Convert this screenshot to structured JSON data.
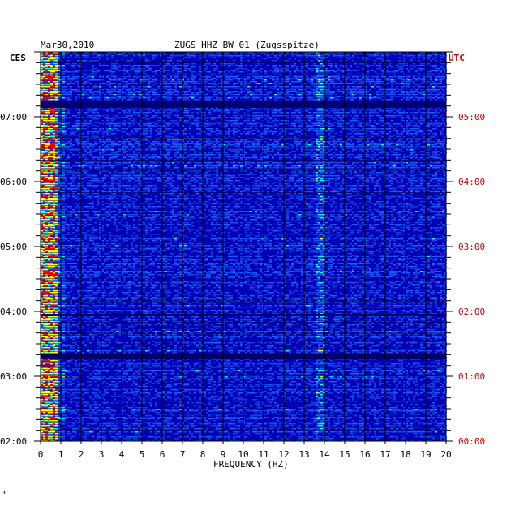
{
  "chart_data": {
    "type": "heatmap",
    "date": "Mar30,2010",
    "title": "ZUGS HHZ BW 01 (Zugsspitze)",
    "left_zone": "CES",
    "right_zone": "UTC",
    "xlabel": "FREQUENCY (HZ)",
    "xlim": [
      0,
      20
    ],
    "x_ticks": [
      "0",
      "1",
      "2",
      "3",
      "4",
      "5",
      "6",
      "7",
      "8",
      "9",
      "10",
      "11",
      "12",
      "13",
      "14",
      "15",
      "16",
      "17",
      "18",
      "19",
      "20"
    ],
    "y_ticks_left": [
      "02:00",
      "03:00",
      "04:00",
      "05:00",
      "06:00",
      "07:00"
    ],
    "y_ticks_right": [
      "00:00",
      "01:00",
      "02:00",
      "03:00",
      "04:00",
      "05:00"
    ],
    "time_range_hours": [
      2.0,
      8.0
    ],
    "colors": {
      "background_low": "#0000b4",
      "mid": "#1e5aff",
      "high": "#00ffff",
      "peak": "#ff0000",
      "utc_text": "#cc0000",
      "axis": "#000000"
    }
  },
  "footer_mark": "\""
}
